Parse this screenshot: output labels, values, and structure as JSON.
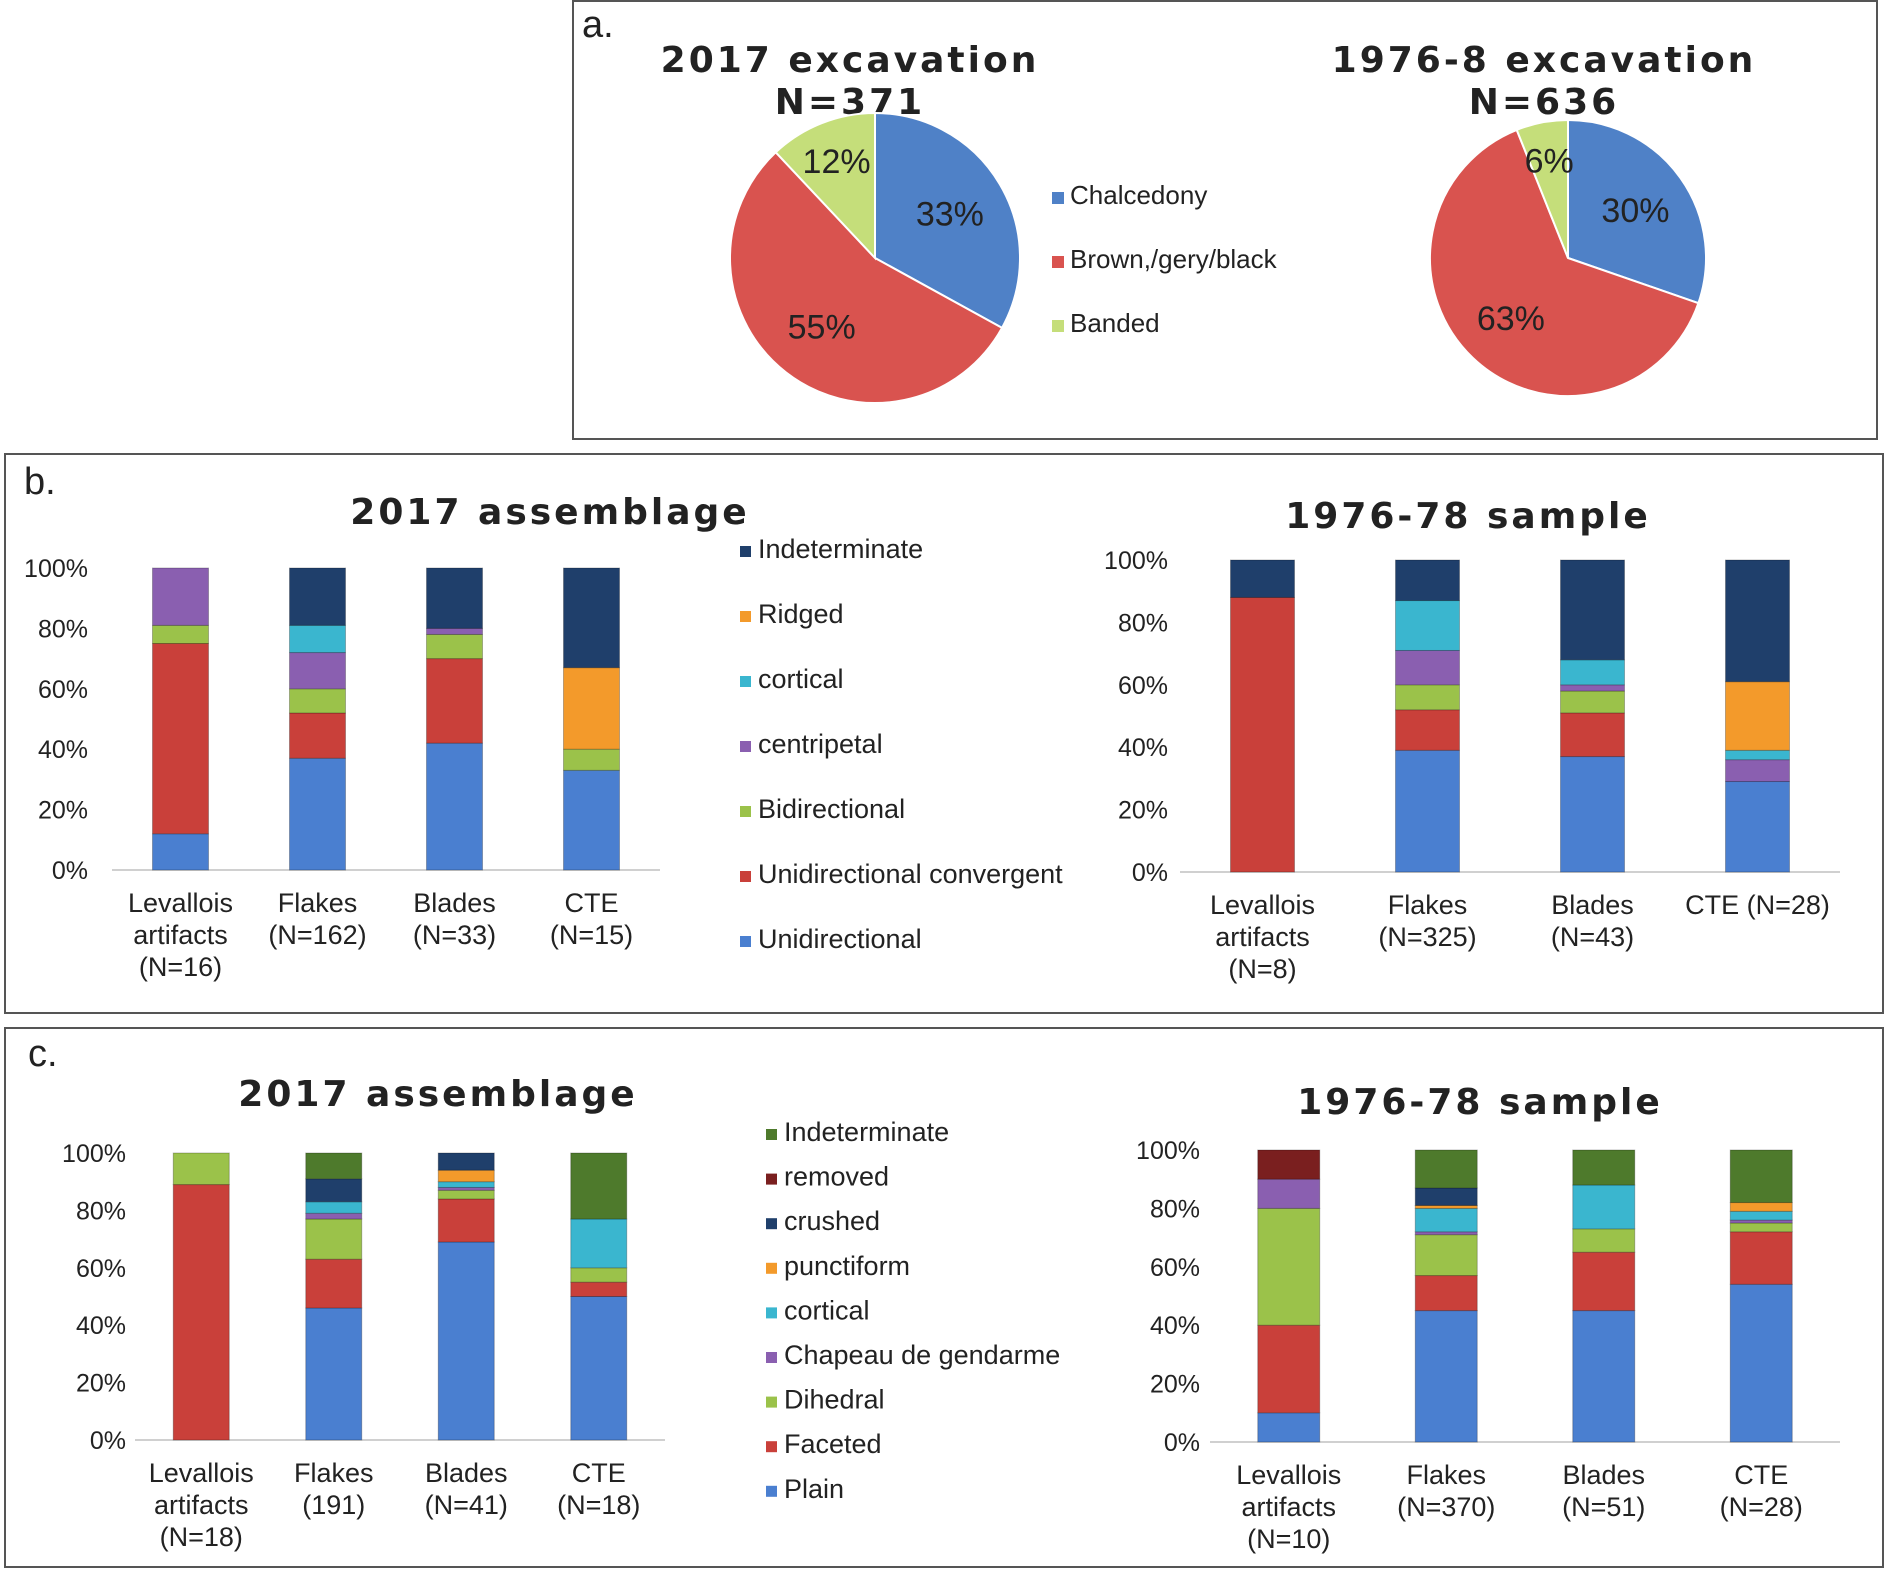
{
  "colors": {
    "Chalcedony": "#4f81c7",
    "Brown,/gery/black": "#d9534f",
    "Banded": "#c5de7a",
    "Unidirectional": "#4a7fd0",
    "Unidirectional convergent": "#c9403a",
    "Bidirectional": "#9bc24a",
    "centripetal": "#8a5fb0",
    "cortical": "#3ab6cf",
    "Ridged": "#f39a2b",
    "Indeterminate": "#1f3f6b",
    "Plain": "#4a7fd0",
    "Faceted": "#c9403a",
    "Dihedral": "#9bc24a",
    "Chapeau de gendarme": "#8a5fb0",
    "punctiform": "#f39a2b",
    "crushed": "#1f3f6b",
    "removed": "#7a1f1f",
    "Indeterminate_c": "#4e7a2c"
  },
  "panel_a": {
    "label": "a.",
    "legend": [
      "Chalcedony",
      "Brown,/gery/black",
      "Banded"
    ],
    "pies": [
      {
        "title_line1": "2017 excavation",
        "title_line2": "N=371",
        "slices": [
          {
            "name": "Chalcedony",
            "value": 33,
            "label": "33%"
          },
          {
            "name": "Brown,/gery/black",
            "value": 55,
            "label": "55%"
          },
          {
            "name": "Banded",
            "value": 12,
            "label": "12%"
          }
        ]
      },
      {
        "title_line1": "1976-8 excavation",
        "title_line2": "N=636",
        "slices": [
          {
            "name": "Chalcedony",
            "value": 30,
            "label": "30%"
          },
          {
            "name": "Brown,/gery/black",
            "value": 63,
            "label": "63%"
          },
          {
            "name": "Banded",
            "value": 6,
            "label": "6%"
          }
        ]
      }
    ]
  },
  "panel_b": {
    "label": "b.",
    "legend": [
      "Indeterminate",
      "Ridged",
      "cortical",
      "centripetal",
      "Bidirectional",
      "Unidirectional convergent",
      "Unidirectional"
    ],
    "y_ticks": [
      "0%",
      "20%",
      "40%",
      "60%",
      "80%",
      "100%"
    ]
  },
  "panel_c": {
    "label": "c.",
    "legend": [
      "Indeterminate",
      "removed",
      "crushed",
      "punctiform",
      "cortical",
      "Chapeau de gendarme",
      "Dihedral",
      "Faceted",
      "Plain"
    ],
    "y_ticks": [
      "0%",
      "20%",
      "40%",
      "60%",
      "80%",
      "100%"
    ]
  },
  "chart_data": [
    {
      "type": "pie",
      "title": "2017 excavation N=371",
      "categories": [
        "Chalcedony",
        "Brown,/gery/black",
        "Banded"
      ],
      "values": [
        33,
        55,
        12
      ]
    },
    {
      "type": "pie",
      "title": "1976-8 excavation N=636",
      "categories": [
        "Chalcedony",
        "Brown,/gery/black",
        "Banded"
      ],
      "values": [
        30,
        63,
        6
      ]
    },
    {
      "type": "bar",
      "stacked": true,
      "title": "2017 assemblage",
      "ylim": [
        0,
        100
      ],
      "categories": [
        [
          "Levallois",
          "artifacts",
          "(N=16)"
        ],
        [
          "Flakes",
          "(N=162)"
        ],
        [
          "Blades",
          "(N=33)"
        ],
        [
          "CTE",
          "(N=15)"
        ]
      ],
      "series": [
        {
          "name": "Unidirectional",
          "values": [
            12,
            37,
            42,
            33
          ]
        },
        {
          "name": "Unidirectional convergent",
          "values": [
            63,
            15,
            28,
            0
          ]
        },
        {
          "name": "Bidirectional",
          "values": [
            6,
            8,
            8,
            7
          ]
        },
        {
          "name": "centripetal",
          "values": [
            19,
            12,
            2,
            0
          ]
        },
        {
          "name": "cortical",
          "values": [
            0,
            9,
            0,
            0
          ]
        },
        {
          "name": "Ridged",
          "values": [
            0,
            0,
            0,
            27
          ]
        },
        {
          "name": "Indeterminate",
          "values": [
            0,
            19,
            20,
            33
          ]
        }
      ]
    },
    {
      "type": "bar",
      "stacked": true,
      "title": "1976-78 sample",
      "ylim": [
        0,
        100
      ],
      "categories": [
        [
          "Levallois",
          "artifacts",
          "(N=8)"
        ],
        [
          "Flakes",
          "(N=325)"
        ],
        [
          "Blades",
          "(N=43)"
        ],
        [
          "CTE (N=28)"
        ]
      ],
      "series": [
        {
          "name": "Unidirectional",
          "values": [
            0,
            39,
            37,
            29
          ]
        },
        {
          "name": "Unidirectional convergent",
          "values": [
            88,
            13,
            14,
            0
          ]
        },
        {
          "name": "Bidirectional",
          "values": [
            0,
            8,
            7,
            0
          ]
        },
        {
          "name": "centripetal",
          "values": [
            0,
            11,
            2,
            7
          ]
        },
        {
          "name": "cortical",
          "values": [
            0,
            16,
            8,
            3
          ]
        },
        {
          "name": "Ridged",
          "values": [
            0,
            0,
            0,
            22
          ]
        },
        {
          "name": "Indeterminate",
          "values": [
            12,
            13,
            32,
            39
          ]
        }
      ]
    },
    {
      "type": "bar",
      "stacked": true,
      "title": "2017 assemblage",
      "ylim": [
        0,
        100
      ],
      "categories": [
        [
          "Levallois",
          "artifacts",
          "(N=18)"
        ],
        [
          "Flakes",
          "(191)"
        ],
        [
          "Blades",
          "(N=41)"
        ],
        [
          "CTE",
          "(N=18)"
        ]
      ],
      "series": [
        {
          "name": "Plain",
          "values": [
            0,
            46,
            69,
            50
          ]
        },
        {
          "name": "Faceted",
          "values": [
            89,
            17,
            15,
            5
          ]
        },
        {
          "name": "Dihedral",
          "values": [
            11,
            14,
            3,
            5
          ]
        },
        {
          "name": "Chapeau de gendarme",
          "values": [
            0,
            2,
            1,
            0
          ]
        },
        {
          "name": "cortical",
          "values": [
            0,
            4,
            2,
            17
          ]
        },
        {
          "name": "punctiform",
          "values": [
            0,
            0,
            4,
            0
          ]
        },
        {
          "name": "crushed",
          "values": [
            0,
            8,
            6,
            0
          ]
        },
        {
          "name": "removed",
          "values": [
            0,
            0,
            0,
            0
          ]
        },
        {
          "name": "Indeterminate",
          "values": [
            0,
            9,
            0,
            23
          ]
        }
      ]
    },
    {
      "type": "bar",
      "stacked": true,
      "title": "1976-78 sample",
      "ylim": [
        0,
        100
      ],
      "categories": [
        [
          "Levallois",
          "artifacts",
          "(N=10)"
        ],
        [
          "Flakes",
          "(N=370)"
        ],
        [
          "Blades",
          "(N=51)"
        ],
        [
          "CTE",
          "(N=28)"
        ]
      ],
      "series": [
        {
          "name": "Plain",
          "values": [
            10,
            45,
            45,
            54
          ]
        },
        {
          "name": "Faceted",
          "values": [
            30,
            12,
            20,
            18
          ]
        },
        {
          "name": "Dihedral",
          "values": [
            40,
            14,
            8,
            3
          ]
        },
        {
          "name": "Chapeau de gendarme",
          "values": [
            10,
            1,
            0,
            1
          ]
        },
        {
          "name": "cortical",
          "values": [
            0,
            8,
            15,
            3
          ]
        },
        {
          "name": "punctiform",
          "values": [
            0,
            1,
            0,
            3
          ]
        },
        {
          "name": "crushed",
          "values": [
            0,
            6,
            0,
            0
          ]
        },
        {
          "name": "removed",
          "values": [
            10,
            0,
            0,
            0
          ]
        },
        {
          "name": "Indeterminate",
          "values": [
            0,
            13,
            12,
            18
          ]
        }
      ]
    }
  ]
}
